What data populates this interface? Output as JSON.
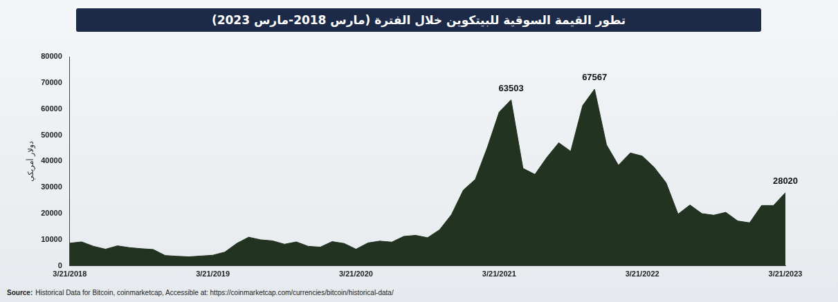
{
  "chart_data": {
    "type": "area",
    "title": "تطور القيمة السوقية للبيتكوين خلال الفترة (مارس 2018-مارس 2023)",
    "y_label": "دولار أمريكي",
    "categories": [
      "3/21/2018",
      null,
      null,
      null,
      null,
      null,
      null,
      null,
      null,
      null,
      null,
      null,
      "3/21/2019",
      null,
      null,
      null,
      null,
      null,
      null,
      null,
      null,
      null,
      null,
      null,
      "3/21/2020",
      null,
      null,
      null,
      null,
      null,
      null,
      null,
      null,
      null,
      null,
      null,
      "3/21/2021",
      null,
      null,
      null,
      null,
      null,
      null,
      null,
      null,
      null,
      null,
      null,
      "3/21/2022",
      null,
      null,
      null,
      null,
      null,
      null,
      null,
      null,
      null,
      null,
      null,
      "3/21/2023"
    ],
    "values": [
      8700,
      9200,
      7500,
      6400,
      7700,
      7000,
      6600,
      6300,
      4000,
      3700,
      3500,
      3800,
      4100,
      5300,
      8600,
      11000,
      10000,
      9600,
      8300,
      9200,
      7500,
      7200,
      9300,
      8600,
      6400,
      8800,
      9500,
      9100,
      11300,
      11700,
      10800,
      13800,
      19600,
      29000,
      33100,
      45200,
      58800,
      63503,
      37300,
      35000,
      41500,
      47100,
      43800,
      61300,
      67567,
      46300,
      38500,
      43200,
      42000,
      37700,
      31800,
      19800,
      23300,
      20000,
      19400,
      20500,
      17200,
      16500,
      23100,
      23100,
      28020
    ],
    "color": "#223322",
    "ylim": [
      0,
      80000
    ],
    "yticks": [
      0,
      10000,
      20000,
      30000,
      40000,
      50000,
      60000,
      70000,
      80000
    ],
    "grid": false,
    "annotations": [
      {
        "value": 63503
      },
      {
        "value": 67567
      },
      {
        "value": 28020
      }
    ]
  },
  "source": {
    "label": "Source:",
    "text": "Historical Data for Bitcoin, coinmarketcap, Accessible at: https://coinmarketcap.com/currencies/bitcoin/historical-data/"
  }
}
